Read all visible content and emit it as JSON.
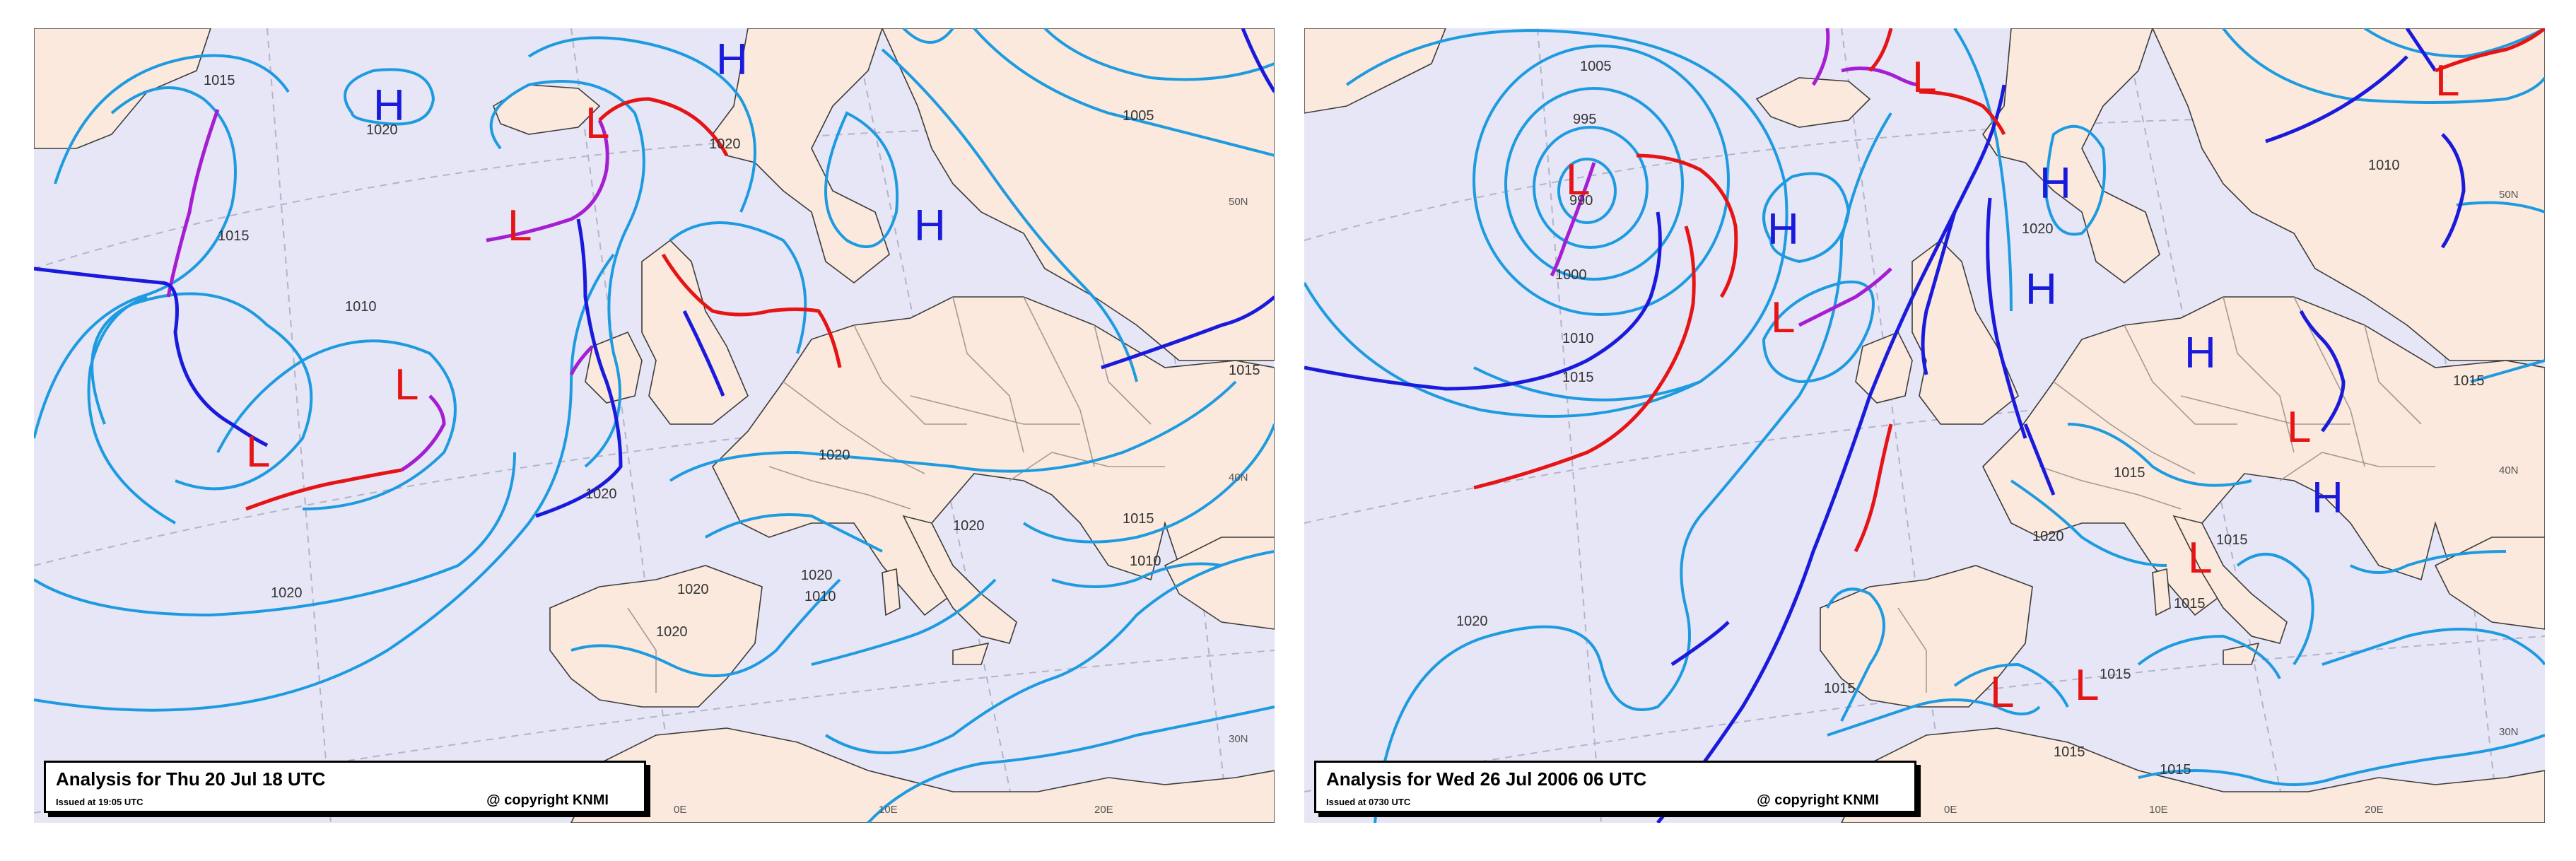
{
  "colors": {
    "sea": "#e6e6f6",
    "land": "#fae9dc",
    "isobar": "#1e9be0",
    "high": "#1a1adc",
    "low": "#e61414",
    "cold_front": "#1a1adc",
    "warm_front": "#e61414",
    "occluded_front": "#a51ed2"
  },
  "panels": [
    {
      "caption": {
        "title": "Analysis for Thu 20 Jul 18 UTC",
        "issued": "Issued at 19:05 UTC",
        "copyright": "@ copyright KNMI"
      },
      "centres": [
        {
          "type": "H"
        },
        {
          "type": "H"
        },
        {
          "type": "H"
        },
        {
          "type": "L"
        },
        {
          "type": "L"
        },
        {
          "type": "L"
        },
        {
          "type": "L"
        }
      ],
      "isobar_labels": [
        "1015",
        "1020",
        "1020",
        "1015",
        "1010",
        "1005",
        "1020",
        "1020",
        "1020",
        "1020",
        "1020",
        "1015",
        "1010",
        "1020",
        "1020",
        "1010",
        "1015"
      ],
      "geo_labels": [
        "50N",
        "40N",
        "30N",
        "0E",
        "10E",
        "20E"
      ]
    },
    {
      "caption": {
        "title": "Analysis for Wed 26 Jul 2006 06 UTC",
        "issued": "Issued at 0730 UTC",
        "copyright": "@ copyright KNMI"
      },
      "centres": [
        {
          "type": "L"
        },
        {
          "type": "L"
        },
        {
          "type": "L"
        },
        {
          "type": "L"
        },
        {
          "type": "L"
        },
        {
          "type": "L"
        },
        {
          "type": "L"
        },
        {
          "type": "L"
        },
        {
          "type": "H"
        },
        {
          "type": "H"
        },
        {
          "type": "H"
        },
        {
          "type": "H"
        },
        {
          "type": "H"
        }
      ],
      "isobar_labels": [
        "1005",
        "995",
        "990",
        "1000",
        "1010",
        "1015",
        "1020",
        "1010",
        "1020",
        "1015",
        "1015",
        "1020",
        "1015",
        "1015",
        "1015",
        "1015",
        "1015",
        "1015"
      ],
      "geo_labels": [
        "50N",
        "40N",
        "30N",
        "0E",
        "10E",
        "20E"
      ]
    }
  ]
}
